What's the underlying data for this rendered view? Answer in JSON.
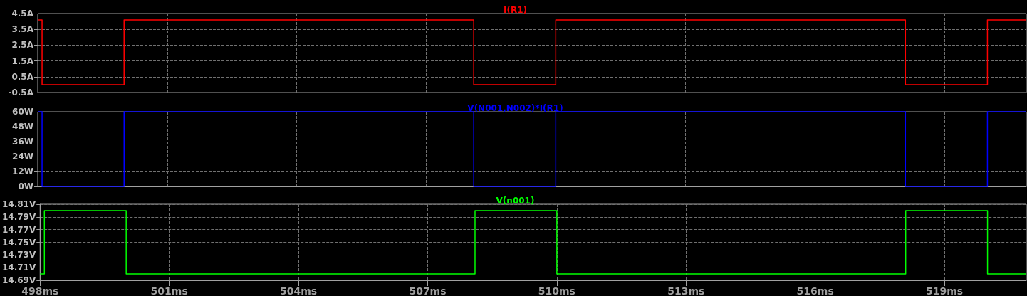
{
  "chart_data": [
    {
      "type": "step",
      "x": [
        498,
        498.1,
        500,
        508.1,
        510,
        518.1,
        520,
        520.9
      ],
      "series": [
        {
          "name": "I(R1)",
          "color": "#ff0000",
          "values": [
            4.1,
            0,
            4.1,
            0,
            4.1,
            0,
            4.1,
            4.1
          ]
        }
      ],
      "xlim": [
        498,
        520.9
      ],
      "xticks": [
        {
          "value": 498,
          "label": null
        },
        {
          "value": 501,
          "label": null
        },
        {
          "value": 504,
          "label": null
        },
        {
          "value": 507,
          "label": null
        },
        {
          "value": 510,
          "label": null
        },
        {
          "value": 513,
          "label": null
        },
        {
          "value": 516,
          "label": null
        },
        {
          "value": 519,
          "label": null
        }
      ],
      "ylim": [
        -0.5,
        4.5
      ],
      "yticks": [
        {
          "value": -0.5,
          "label": "-0.5A"
        },
        {
          "value": 0.5,
          "label": "0.5A"
        },
        {
          "value": 1.5,
          "label": "1.5A"
        },
        {
          "value": 2.5,
          "label": "2.5A"
        },
        {
          "value": 3.5,
          "label": "3.5A"
        },
        {
          "value": 4.5,
          "label": "4.5A"
        }
      ],
      "tick_labels": "y",
      "grid": true,
      "legend": "top",
      "line_style": "solid"
    },
    {
      "type": "step",
      "x": [
        498,
        498.1,
        500,
        508.1,
        510,
        518.1,
        520,
        520.9
      ],
      "series": [
        {
          "name": "V(N001,N002)*I(R1)",
          "color": "#0000ff",
          "values": [
            60,
            0,
            60,
            0,
            60,
            0,
            60,
            60
          ]
        }
      ],
      "xlim": [
        498,
        520.9
      ],
      "xticks": [
        {
          "value": 498,
          "label": null
        },
        {
          "value": 501,
          "label": null
        },
        {
          "value": 504,
          "label": null
        },
        {
          "value": 507,
          "label": null
        },
        {
          "value": 510,
          "label": null
        },
        {
          "value": 513,
          "label": null
        },
        {
          "value": 516,
          "label": null
        },
        {
          "value": 519,
          "label": null
        }
      ],
      "ylim": [
        0,
        60
      ],
      "yticks": [
        {
          "value": 0,
          "label": "0W"
        },
        {
          "value": 12,
          "label": "12W"
        },
        {
          "value": 24,
          "label": "24W"
        },
        {
          "value": 36,
          "label": "36W"
        },
        {
          "value": 48,
          "label": "48W"
        },
        {
          "value": 60,
          "label": "60W"
        }
      ],
      "tick_labels": "y",
      "grid": true,
      "legend": "top",
      "line_style": "solid"
    },
    {
      "type": "step",
      "x": [
        498,
        498.1,
        500,
        508.1,
        510,
        518.1,
        520,
        520.9
      ],
      "series": [
        {
          "name": "V(n001)",
          "color": "#00ff00",
          "values": [
            14.7,
            14.8,
            14.7,
            14.8,
            14.7,
            14.8,
            14.7,
            14.7
          ]
        }
      ],
      "xlim": [
        498,
        520.9
      ],
      "xticks": [
        {
          "value": 498,
          "label": "498ms"
        },
        {
          "value": 501,
          "label": "501ms"
        },
        {
          "value": 504,
          "label": "504ms"
        },
        {
          "value": 507,
          "label": "507ms"
        },
        {
          "value": 510,
          "label": "510ms"
        },
        {
          "value": 513,
          "label": "513ms"
        },
        {
          "value": 516,
          "label": "516ms"
        },
        {
          "value": 519,
          "label": "519ms"
        }
      ],
      "ylim": [
        14.69,
        14.81
      ],
      "yticks": [
        {
          "value": 14.69,
          "label": "14.69V"
        },
        {
          "value": 14.71,
          "label": "14.71V"
        },
        {
          "value": 14.73,
          "label": "14.73V"
        },
        {
          "value": 14.75,
          "label": "14.75V"
        },
        {
          "value": 14.77,
          "label": "14.77V"
        },
        {
          "value": 14.79,
          "label": "14.79V"
        },
        {
          "value": 14.81,
          "label": "14.81V"
        }
      ],
      "grid": true,
      "legend": "top",
      "line_style": "solid"
    }
  ]
}
